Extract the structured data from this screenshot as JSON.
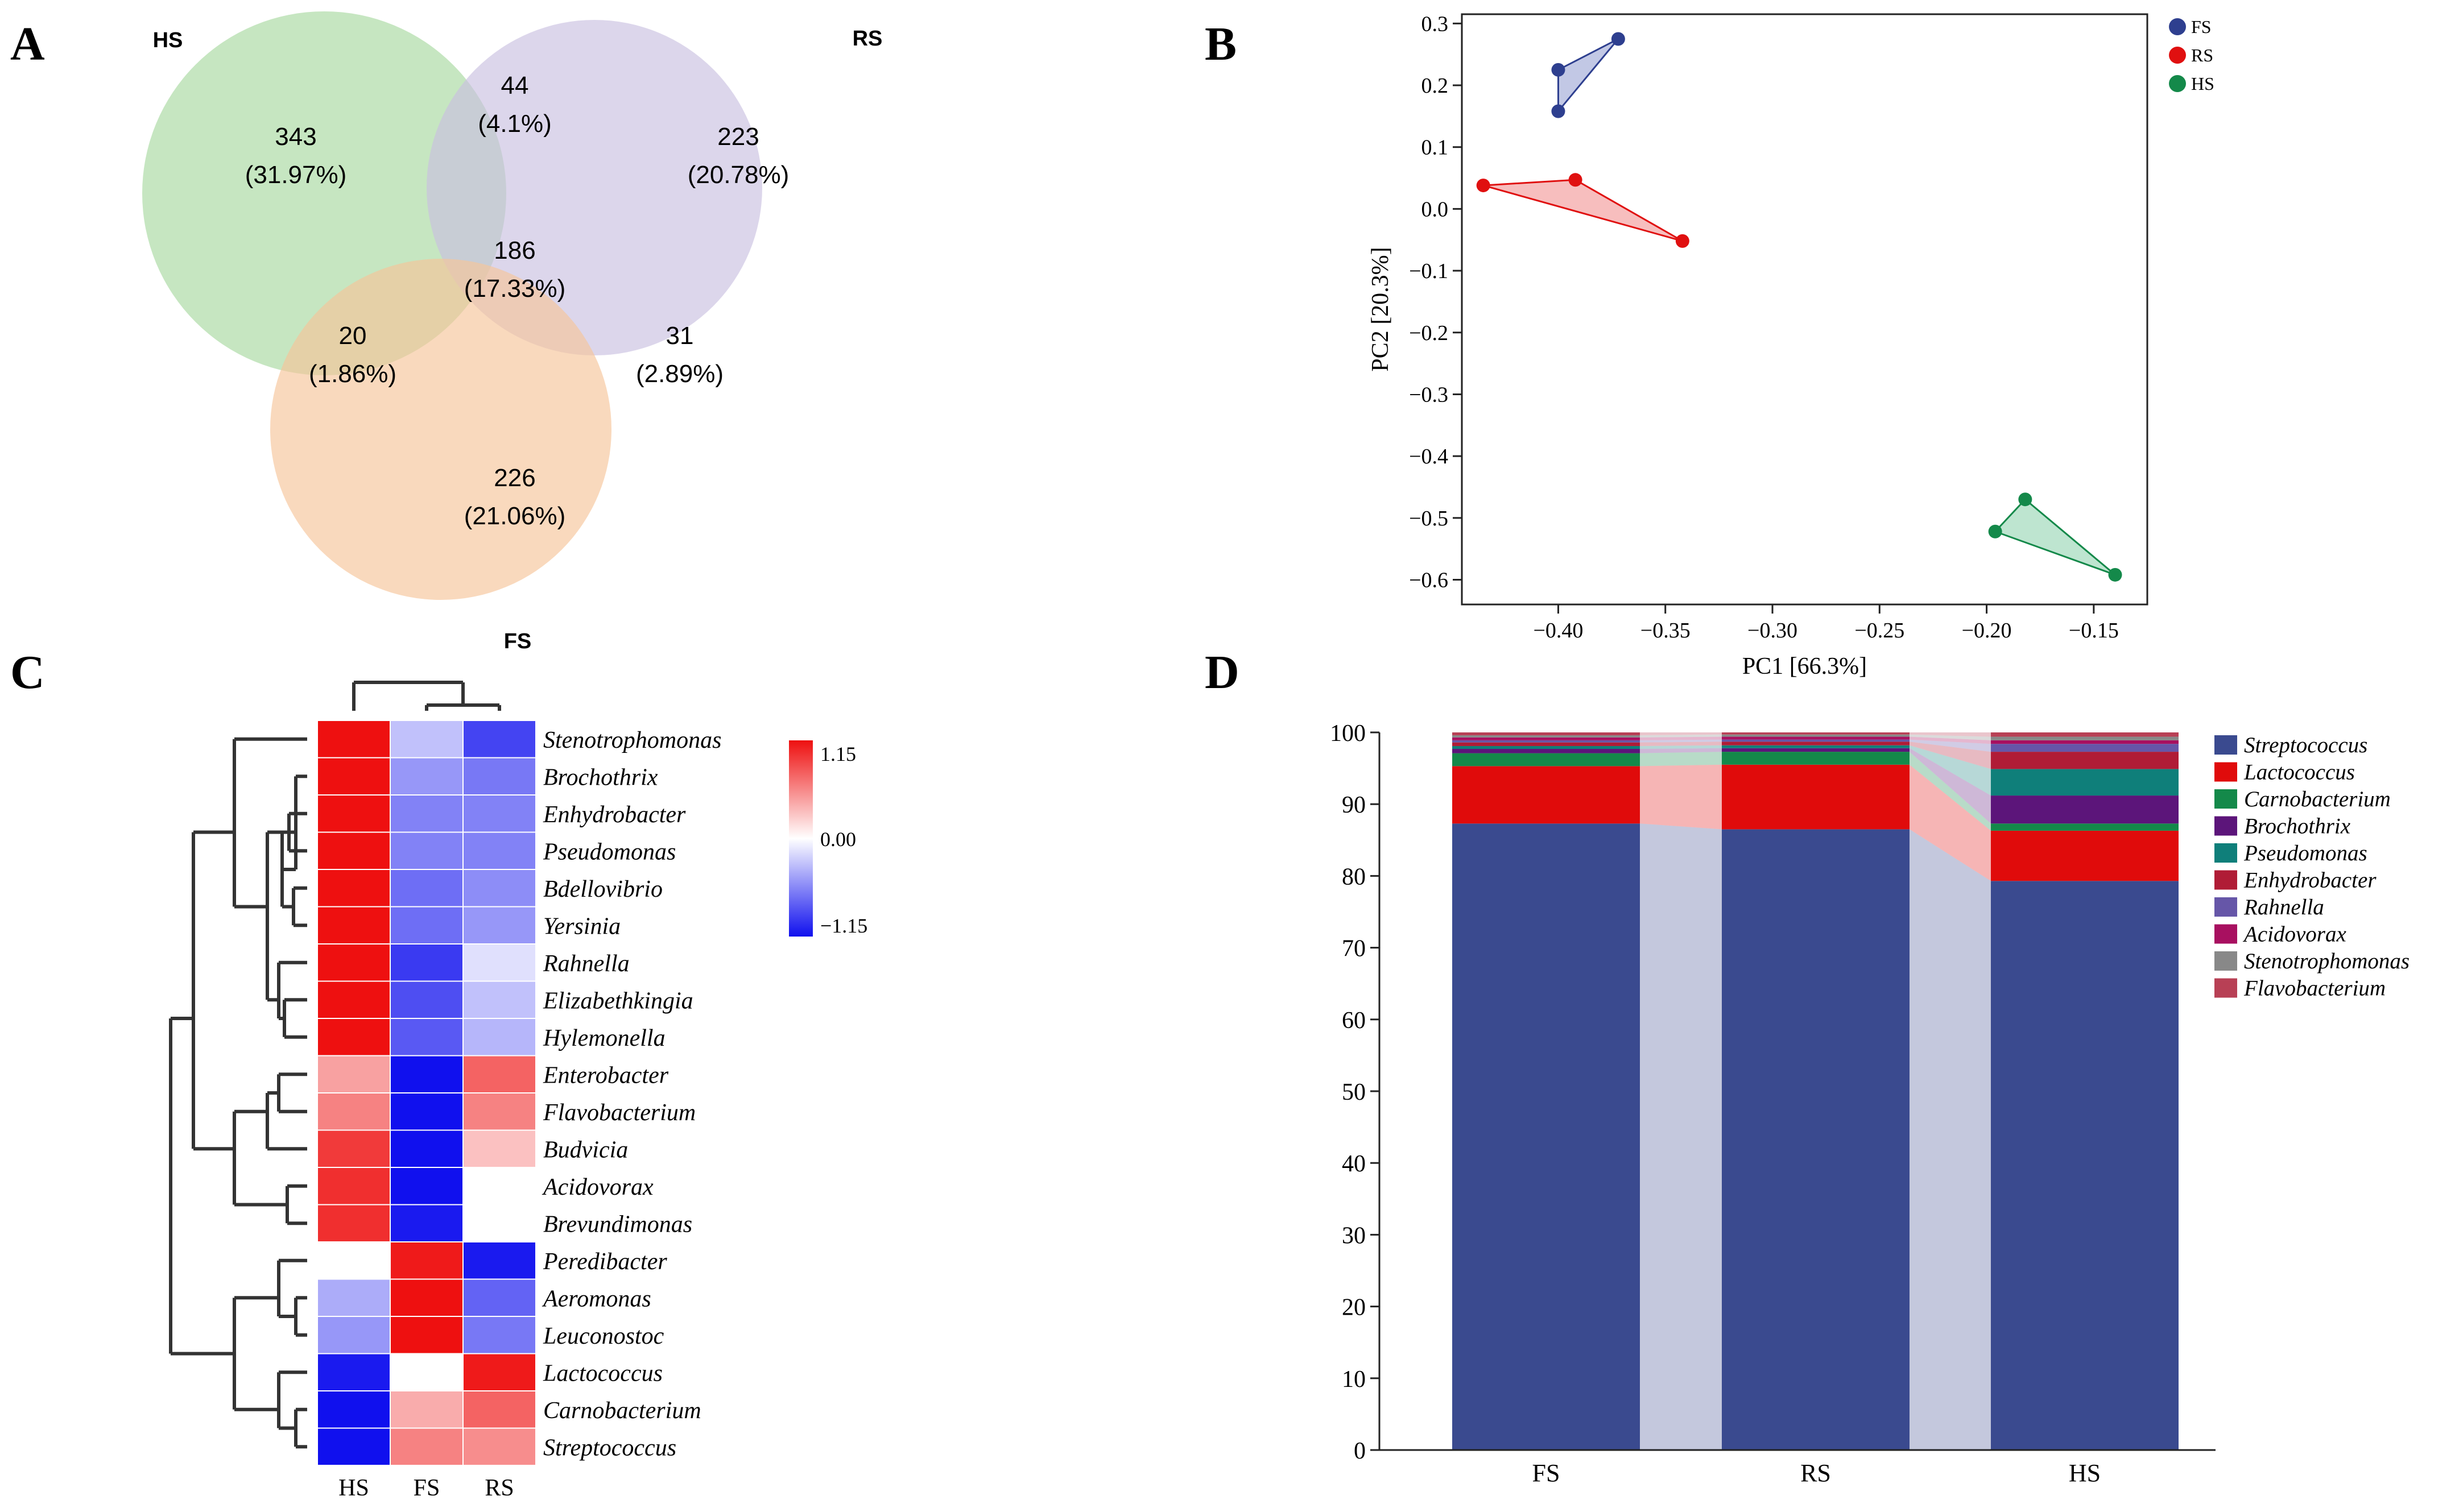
{
  "panels": {
    "a": "A",
    "b": "B",
    "c": "C",
    "d": "D"
  },
  "chart_data": [
    {
      "type": "venn",
      "title": "",
      "sets": [
        {
          "name": "HS",
          "color": "#a8d8a0"
        },
        {
          "name": "RS",
          "color": "#c9c0e0"
        },
        {
          "name": "FS",
          "color": "#f6c49a"
        }
      ],
      "regions": [
        {
          "sets": [
            "HS"
          ],
          "count": "343",
          "percent": "(31.97%)"
        },
        {
          "sets": [
            "HS",
            "RS"
          ],
          "count": "44",
          "percent": "(4.1%)"
        },
        {
          "sets": [
            "RS"
          ],
          "count": "223",
          "percent": "(20.78%)"
        },
        {
          "sets": [
            "HS",
            "RS",
            "FS"
          ],
          "count": "186",
          "percent": "(17.33%)"
        },
        {
          "sets": [
            "HS",
            "FS"
          ],
          "count": "20",
          "percent": "(1.86%)"
        },
        {
          "sets": [
            "RS",
            "FS"
          ],
          "count": "31",
          "percent": "(2.89%)"
        },
        {
          "sets": [
            "FS"
          ],
          "count": "226",
          "percent": "(21.06%)"
        }
      ]
    },
    {
      "type": "scatter",
      "title": "",
      "xlabel": "PC1 [66.3%]",
      "ylabel": "PC2 [20.3%]",
      "xlim": [
        -0.445,
        -0.125
      ],
      "ylim": [
        -0.64,
        0.315
      ],
      "xticks": [
        -0.4,
        -0.35,
        -0.3,
        -0.25,
        -0.2,
        -0.15
      ],
      "xtick_labels": [
        "−0.40",
        "−0.35",
        "−0.30",
        "−0.25",
        "−0.20",
        "−0.15"
      ],
      "yticks": [
        0.3,
        0.2,
        0.1,
        0.0,
        -0.1,
        -0.2,
        -0.3,
        -0.4,
        -0.5,
        -0.6
      ],
      "ytick_labels": [
        "0.3",
        "0.2",
        "0.1",
        "0.0",
        "−0.1",
        "−0.2",
        "−0.3",
        "−0.4",
        "−0.5",
        "−0.6"
      ],
      "series": [
        {
          "name": "FS",
          "color": "#2e3f8f",
          "fill": "#aeb6dc",
          "points": [
            [
              -0.4,
              0.225
            ],
            [
              -0.372,
              0.275
            ],
            [
              -0.4,
              0.158
            ]
          ]
        },
        {
          "name": "RS",
          "color": "#e01010",
          "fill": "#f4a8a8",
          "points": [
            [
              -0.435,
              0.038
            ],
            [
              -0.392,
              0.047
            ],
            [
              -0.342,
              -0.052
            ]
          ]
        },
        {
          "name": "HS",
          "color": "#14894a",
          "fill": "#a8dcc0",
          "points": [
            [
              -0.182,
              -0.47
            ],
            [
              -0.14,
              -0.592
            ],
            [
              -0.196,
              -0.522
            ]
          ]
        }
      ],
      "legend": "top-right"
    },
    {
      "type": "heatmap",
      "title": "",
      "columns": [
        "HS",
        "FS",
        "RS"
      ],
      "rows": [
        "Stenotrophomonas",
        "Brochothrix",
        "Enhydrobacter",
        "Pseudomonas",
        "Bdellovibrio",
        "Yersinia",
        "Rahnella",
        "Elizabethkingia",
        "Hylemonella",
        "Enterobacter",
        "Flavobacterium",
        "Budvicia",
        "Acidovorax",
        "Brevundimonas",
        "Peredibacter",
        "Aeromonas",
        "Leuconostoc",
        "Lactococcus",
        "Carnobacterium",
        "Streptococcus"
      ],
      "values": [
        [
          1.15,
          -0.3,
          -0.9
        ],
        [
          1.15,
          -0.5,
          -0.65
        ],
        [
          1.15,
          -0.6,
          -0.6
        ],
        [
          1.15,
          -0.6,
          -0.6
        ],
        [
          1.15,
          -0.7,
          -0.55
        ],
        [
          1.15,
          -0.7,
          -0.5
        ],
        [
          1.15,
          -0.95,
          -0.15
        ],
        [
          1.15,
          -0.85,
          -0.3
        ],
        [
          1.15,
          -0.8,
          -0.35
        ],
        [
          0.45,
          -1.15,
          0.75
        ],
        [
          0.6,
          -1.15,
          0.6
        ],
        [
          0.95,
          -1.15,
          0.3
        ],
        [
          1.0,
          -1.15,
          0.0
        ],
        [
          1.0,
          -1.1,
          0.0
        ],
        [
          0.0,
          1.1,
          -1.1
        ],
        [
          -0.4,
          1.15,
          -0.75
        ],
        [
          -0.5,
          1.15,
          -0.65
        ],
        [
          -1.1,
          0.0,
          1.1
        ],
        [
          -1.15,
          0.4,
          0.75
        ],
        [
          -1.15,
          0.6,
          0.55
        ]
      ],
      "color_scale": {
        "min": -1.15,
        "mid": 0.0,
        "max": 1.15,
        "labels": [
          "1.15",
          "0.00",
          "−1.15"
        ],
        "colors": [
          "#1010ee",
          "#ffffff",
          "#ee1010"
        ]
      }
    },
    {
      "type": "bar",
      "stacked": true,
      "title": "",
      "categories": [
        "FS",
        "RS",
        "HS"
      ],
      "ylim": [
        0,
        100
      ],
      "yticks": [
        0,
        10,
        20,
        30,
        40,
        50,
        60,
        70,
        80,
        90,
        100
      ],
      "series": [
        {
          "name": "Streptococcus",
          "color": "#3a4a8f",
          "values": [
            87.3,
            86.5,
            79.3
          ]
        },
        {
          "name": "Lactococcus",
          "color": "#e00b0b",
          "values": [
            8.0,
            9.0,
            7.0
          ]
        },
        {
          "name": "Carnobacterium",
          "color": "#14894a",
          "values": [
            1.8,
            1.8,
            1.0
          ]
        },
        {
          "name": "Brochothrix",
          "color": "#5c157a",
          "values": [
            0.6,
            0.5,
            3.9
          ]
        },
        {
          "name": "Pseudomonas",
          "color": "#0f7f7a",
          "values": [
            0.4,
            0.4,
            3.7
          ]
        },
        {
          "name": "Enhydrobacter",
          "color": "#b01c36",
          "values": [
            0.5,
            0.5,
            2.4
          ]
        },
        {
          "name": "Rahnella",
          "color": "#6656a8",
          "values": [
            0.3,
            0.3,
            1.1
          ]
        },
        {
          "name": "Acidovorax",
          "color": "#a81060",
          "values": [
            0.4,
            0.4,
            0.5
          ]
        },
        {
          "name": "Stenotrophomonas",
          "color": "#888888",
          "values": [
            0.3,
            0.3,
            0.5
          ]
        },
        {
          "name": "Flavobacterium",
          "color": "#b84055",
          "values": [
            0.4,
            0.3,
            0.6
          ]
        }
      ],
      "legend": "top-right"
    }
  ]
}
